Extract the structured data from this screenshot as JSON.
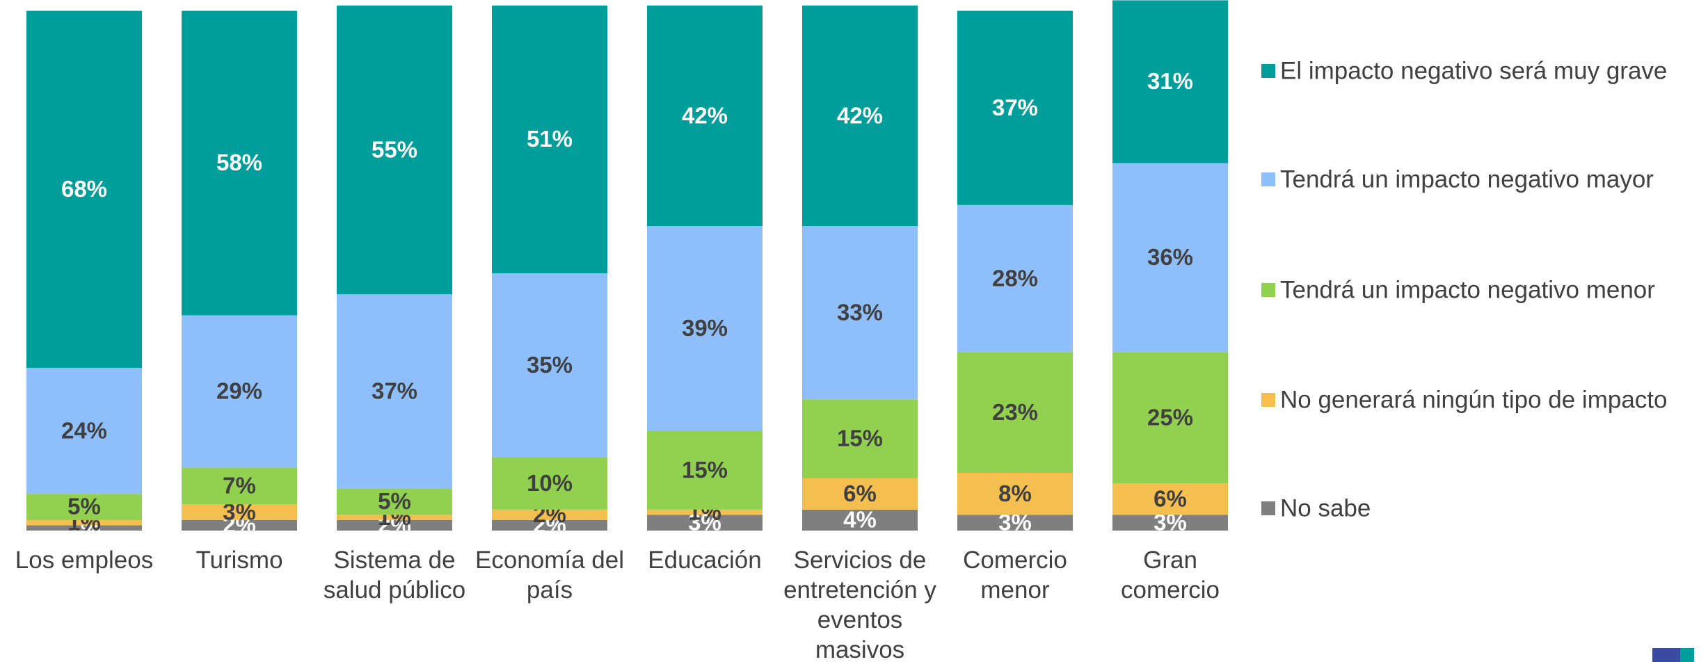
{
  "chart_data": {
    "type": "stacked_bar",
    "categories": [
      "Los empleos",
      "Turismo",
      "Sistema de salud público",
      "Economía del país",
      "Educación",
      "Servicios de entretención y eventos masivos",
      "Comercio menor",
      "Gran comercio"
    ],
    "ylim": [
      0,
      100
    ],
    "series": [
      {
        "name": "No sabe",
        "color": "#7f7f7f",
        "label_color": "#ffffff",
        "values": [
          1,
          2,
          2,
          2,
          3,
          4,
          3,
          3
        ],
        "value_labels": [
          "1%",
          "2%",
          "2%",
          "2%",
          "3%",
          "4%",
          "3%",
          "3%"
        ]
      },
      {
        "name": "No generará ningún tipo de impacto",
        "color": "#f4bf4f",
        "label_color": "#404040",
        "values": [
          1,
          3,
          1,
          2,
          1,
          6,
          8,
          6
        ],
        "value_labels": [
          "1%",
          "3%",
          "1%",
          "2%",
          "1%",
          "6%",
          "8%",
          "6%"
        ]
      },
      {
        "name": "Tendrá un impacto negativo menor",
        "color": "#92d050",
        "label_color": "#404040",
        "values": [
          5,
          7,
          5,
          10,
          15,
          15,
          23,
          25
        ],
        "value_labels": [
          "5%",
          "7%",
          "5%",
          "10%",
          "15%",
          "15%",
          "23%",
          "25%"
        ]
      },
      {
        "name": "Tendrá un impacto negativo mayor",
        "color": "#8fbffa",
        "label_color": "#404040",
        "values": [
          24,
          29,
          37,
          35,
          39,
          33,
          28,
          36
        ],
        "value_labels": [
          "24%",
          "29%",
          "37%",
          "35%",
          "39%",
          "33%",
          "28%",
          "36%"
        ]
      },
      {
        "name": "El impacto negativo será muy grave",
        "color": "#009e9a",
        "label_color": "#ffffff",
        "values": [
          68,
          58,
          55,
          51,
          42,
          42,
          37,
          31
        ],
        "value_labels": [
          "68%",
          "58%",
          "55%",
          "51%",
          "42%",
          "42%",
          "37%",
          "31%"
        ]
      }
    ]
  }
}
